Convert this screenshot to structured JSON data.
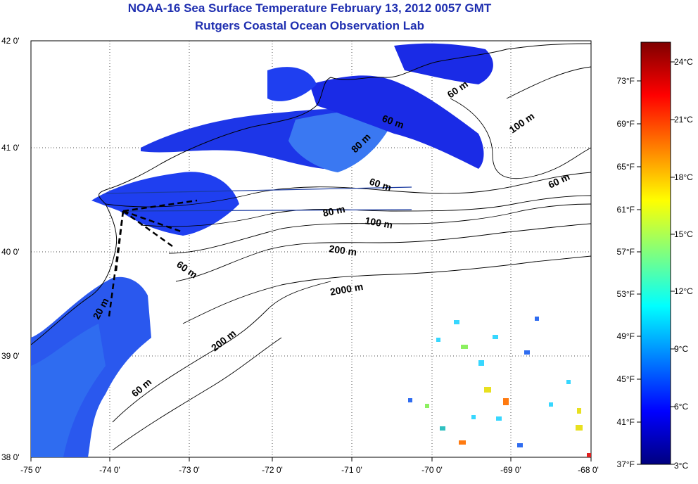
{
  "title": "NOAA-16 Sea Surface Temperature February 13, 2012 0057 GMT",
  "subtitle": "Rutgers Coastal Ocean Observation Lab",
  "lat_ticks": [
    "42 0'",
    "41 0'",
    "40 0'",
    "39 0'",
    "38 0'"
  ],
  "lon_ticks": [
    "-75 0'",
    "-74 0'",
    "-73 0'",
    "-72 0'",
    "-71 0'",
    "-70 0'",
    "-69 0'",
    "-68 0'"
  ],
  "isobaths": [
    "60 m",
    "100 m",
    "60 m",
    "60 m",
    "80 m",
    "100 m",
    "200 m",
    "2000 m",
    "200 m",
    "60 m",
    "20 m",
    "60 m",
    "80 m",
    "60 m"
  ],
  "colorbar": {
    "fahrenheit": [
      "73°F",
      "69°F",
      "65°F",
      "61°F",
      "57°F",
      "53°F",
      "49°F",
      "45°F",
      "41°F",
      "37°F"
    ],
    "celsius": [
      "24°C",
      "21°C",
      "18°C",
      "15°C",
      "12°C",
      "9°C",
      "6°C",
      "3°C"
    ]
  },
  "colors": {
    "title": "#1f2fb0",
    "sst_cold": "#1a2be6",
    "sst_mid": "#2f6cf0"
  }
}
